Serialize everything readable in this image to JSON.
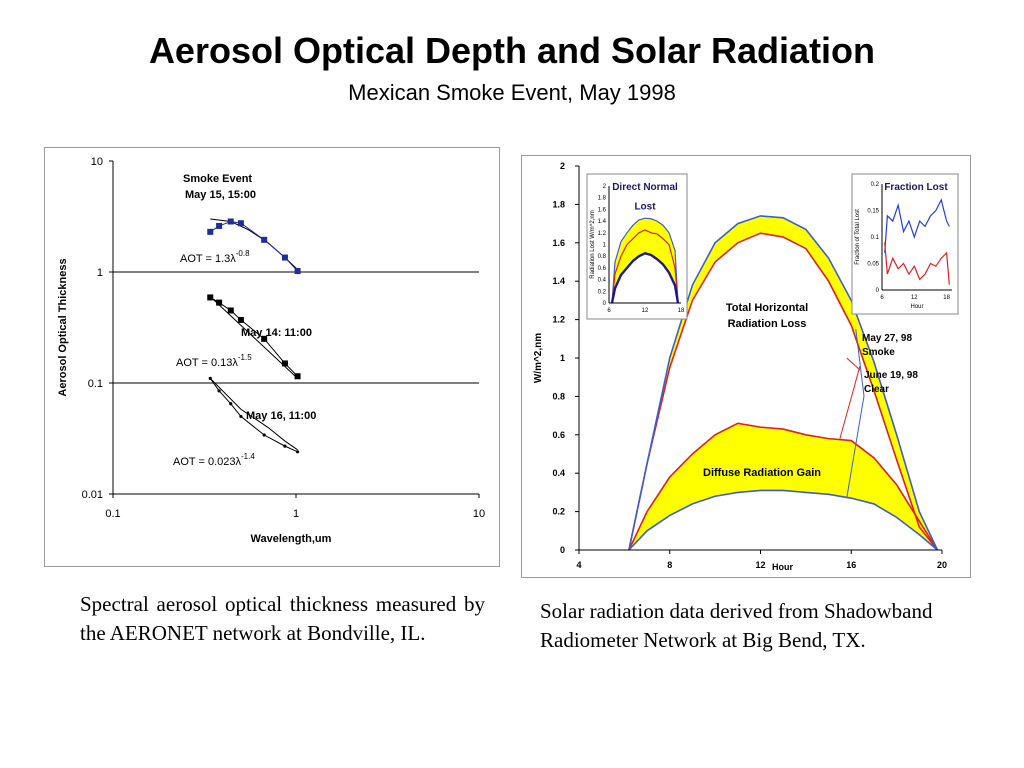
{
  "slide": {
    "title": "Aerosol Optical Depth and Solar Radiation",
    "subtitle": "Mexican Smoke Event, May 1998"
  },
  "captions": {
    "left": "Spectral aerosol optical thickness measured by the AERONET network at Bondville, IL.",
    "right": "Solar radiation data derived from Shadowband Radiometer Network at Big Bend, TX."
  },
  "chart_data": [
    {
      "type": "scatter",
      "xlabel": "Wavelength,um",
      "ylabel": "Aerosol Optical Thickness",
      "x_scale": "log",
      "y_scale": "log",
      "xlim": [
        0.1,
        10
      ],
      "ylim": [
        0.01,
        10
      ],
      "x_ticks": [
        "0.1",
        "1",
        "10"
      ],
      "y_ticks": [
        "10",
        "1",
        "0.1",
        "0.01"
      ],
      "grid": "horizontal at decades",
      "colors": {
        "smoke": "#1f2d9e",
        "other": "#000000"
      },
      "series": [
        {
          "name": "Smoke Event May 15, 15:00",
          "label_lines": [
            "Smoke Event",
            "May 15, 15:00"
          ],
          "fit_label": "AOT = 1.3",
          "fit_exp": "-0.8",
          "x": [
            0.34,
            0.38,
            0.44,
            0.5,
            0.67,
            0.87,
            1.02
          ],
          "y": [
            2.3,
            2.6,
            2.85,
            2.75,
            1.95,
            1.35,
            1.02
          ],
          "fit_curve": {
            "x": [
              0.34,
              0.44,
              0.55,
              0.7,
              0.87,
              1.02
            ],
            "y": [
              3.0,
              2.85,
              2.4,
              1.85,
              1.35,
              1.05
            ]
          }
        },
        {
          "name": "May 14: 11:00",
          "label_lines": [
            "May 14: 11:00"
          ],
          "fit_label": "AOT = 0.13",
          "fit_exp": "-1.5",
          "x": [
            0.34,
            0.38,
            0.44,
            0.5,
            0.67,
            0.87,
            1.02
          ],
          "y": [
            0.59,
            0.53,
            0.45,
            0.37,
            0.25,
            0.15,
            0.115
          ],
          "fit_curve": {
            "x": [
              0.34,
              1.02
            ],
            "y": [
              0.6,
              0.11
            ]
          }
        },
        {
          "name": "May 16, 11:00",
          "label_lines": [
            "May 16, 11:00"
          ],
          "fit_label": "AOT = 0.023",
          "fit_exp": "-1.4",
          "x": [
            0.34,
            0.38,
            0.44,
            0.5,
            0.67,
            0.87,
            1.02
          ],
          "y": [
            0.11,
            0.085,
            0.065,
            0.05,
            0.034,
            0.027,
            0.024
          ],
          "fit_curve": {
            "x": [
              0.34,
              0.5,
              0.7,
              0.87,
              1.02
            ],
            "y": [
              0.11,
              0.058,
              0.04,
              0.03,
              0.025
            ]
          }
        }
      ]
    },
    {
      "type": "area",
      "xlabel": "Hour",
      "ylabel": "W/m^2,nm",
      "xlim": [
        4,
        20
      ],
      "ylim": [
        0,
        2
      ],
      "x_ticks": [
        4,
        8,
        12,
        16,
        20
      ],
      "y_ticks": [
        0,
        0.2,
        0.4,
        0.6,
        0.8,
        1,
        1.2,
        1.4,
        1.6,
        1.8,
        2
      ],
      "fill_color": "#ffff00",
      "annotations": [
        "Total Horizontal Radiation Loss",
        "Diffuse Radiation Gain",
        "May 27, 98 Smoke",
        "June 19, 98 Clear"
      ],
      "series": [
        {
          "name": "May 27, 98 Smoke",
          "color": "#e02020",
          "total": {
            "x": [
              6.2,
              7,
              8,
              9,
              10,
              11,
              12,
              13,
              14,
              15,
              16,
              17,
              18,
              19,
              19.8
            ],
            "y": [
              0,
              0.45,
              0.95,
              1.3,
              1.5,
              1.6,
              1.65,
              1.63,
              1.57,
              1.4,
              1.17,
              0.83,
              0.47,
              0.12,
              0
            ]
          },
          "diffuse": {
            "x": [
              6.2,
              7,
              8,
              9,
              10,
              11,
              12,
              13,
              14,
              15,
              16,
              17,
              18,
              19,
              19.8
            ],
            "y": [
              0,
              0.2,
              0.38,
              0.5,
              0.6,
              0.66,
              0.64,
              0.63,
              0.6,
              0.58,
              0.57,
              0.48,
              0.34,
              0.15,
              0
            ]
          }
        },
        {
          "name": "June 19, 98 Clear",
          "color": "#3a5fcd",
          "total": {
            "x": [
              6.2,
              7,
              8,
              9,
              10,
              11,
              12,
              13,
              14,
              15,
              16,
              17,
              18,
              19,
              19.8
            ],
            "y": [
              0,
              0.45,
              1.0,
              1.38,
              1.6,
              1.7,
              1.74,
              1.73,
              1.67,
              1.52,
              1.3,
              0.98,
              0.6,
              0.2,
              0
            ]
          },
          "diffuse": {
            "x": [
              6.2,
              7,
              8,
              9,
              10,
              11,
              12,
              13,
              14,
              15,
              16,
              17,
              18,
              19,
              19.8
            ],
            "y": [
              0,
              0.1,
              0.18,
              0.24,
              0.28,
              0.3,
              0.31,
              0.31,
              0.3,
              0.29,
              0.27,
              0.24,
              0.17,
              0.08,
              0
            ]
          }
        }
      ],
      "insets": [
        {
          "title": "Direct Normal",
          "ylabel": "Radiation Lost W/m^2,nm",
          "xlim": [
            6,
            18
          ],
          "ylim": [
            0,
            2
          ],
          "x_ticks": [
            6,
            12,
            18
          ],
          "y_ticks": [
            0,
            0.2,
            0.4,
            0.6,
            0.8,
            1,
            1.2,
            1.4,
            1.6,
            1.8,
            2
          ],
          "annotation": "Lost",
          "series": [
            {
              "name": "clear",
              "color": "#3a5fcd",
              "x": [
                6.5,
                7,
                8,
                9,
                10,
                11,
                12,
                13,
                14,
                15,
                16,
                17,
                17.5
              ],
              "y": [
                0,
                0.7,
                1.05,
                1.2,
                1.33,
                1.42,
                1.45,
                1.44,
                1.4,
                1.33,
                1.2,
                0.9,
                0
              ]
            },
            {
              "name": "smoke total",
              "color": "#e02020",
              "x": [
                6.5,
                7,
                8,
                9,
                10,
                11,
                12,
                13,
                14,
                15,
                16,
                17,
                17.5
              ],
              "y": [
                0,
                0.5,
                0.8,
                1.0,
                1.1,
                1.2,
                1.25,
                1.2,
                1.18,
                1.1,
                1.0,
                0.6,
                0
              ]
            },
            {
              "name": "smoke direct",
              "color": "#1a1a8c",
              "x": [
                6.5,
                7,
                8,
                9,
                10,
                11,
                12,
                13,
                14,
                15,
                16,
                17,
                17.5
              ],
              "y": [
                0,
                0.25,
                0.48,
                0.6,
                0.72,
                0.8,
                0.85,
                0.82,
                0.75,
                0.66,
                0.52,
                0.3,
                0
              ]
            }
          ]
        },
        {
          "title": "Fraction Lost",
          "ylabel": "Fraction of Total Lost",
          "xlabel": "Hour",
          "xlim": [
            6,
            19
          ],
          "ylim": [
            0,
            0.2
          ],
          "x_ticks": [
            6,
            12,
            18
          ],
          "y_ticks": [
            0,
            0.05,
            0.1,
            0.15,
            0.2
          ],
          "series": [
            {
              "name": "blue",
              "color": "#2040d0",
              "x": [
                6.5,
                7,
                8,
                9,
                10,
                11,
                12,
                13,
                14,
                15,
                16,
                17,
                18,
                18.5
              ],
              "y": [
                0.07,
                0.14,
                0.13,
                0.16,
                0.11,
                0.13,
                0.1,
                0.13,
                0.12,
                0.14,
                0.15,
                0.17,
                0.13,
                0.12
              ]
            },
            {
              "name": "red",
              "color": "#e02020",
              "x": [
                6.5,
                7,
                8,
                9,
                10,
                11,
                12,
                13,
                14,
                15,
                16,
                17,
                18,
                18.5
              ],
              "y": [
                0.09,
                0.03,
                0.06,
                0.04,
                0.05,
                0.03,
                0.045,
                0.02,
                0.03,
                0.05,
                0.045,
                0.06,
                0.07,
                0.01
              ]
            }
          ]
        }
      ]
    }
  ]
}
